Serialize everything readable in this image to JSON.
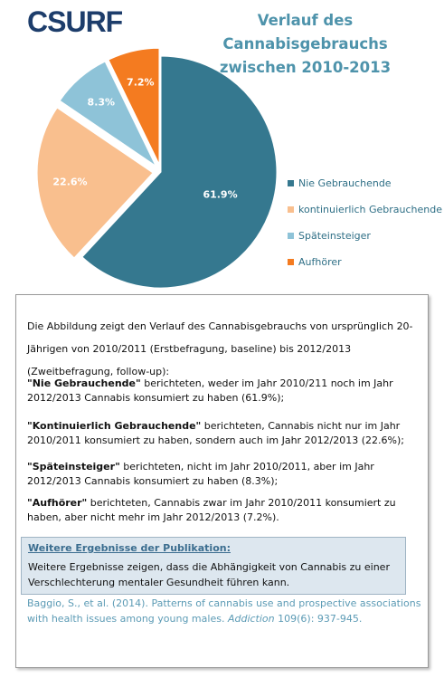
{
  "logo": "CSURF",
  "chart_data": {
    "type": "pie",
    "title": "Verlauf des Cannabisgebrauchs zwischen 2010-2013",
    "categories": [
      "Nie Gebrauchende",
      "kontinuierlich Gebrauchende",
      "Späteinsteiger",
      "Aufhörer"
    ],
    "values": [
      61.9,
      22.6,
      8.3,
      7.2
    ],
    "value_labels": [
      "61.9%",
      "22.6%",
      "8.3%",
      "7.2%"
    ],
    "colors": [
      "#35788f",
      "#f9bf8e",
      "#8ec3d8",
      "#f47b20"
    ],
    "legend": "right"
  },
  "description": {
    "intro": "Die Abbildung zeigt den Verlauf des Cannabisgebrauchs von ursprünglich 20-Jährigen von 2010/2011 (Erstbefragung, baseline) bis 2012/2013 (Zweitbefragung, follow-up):",
    "items": [
      {
        "term": "\"Nie Gebrauchende\"",
        "text": " berichteten, weder im Jahr 2010/211 noch im Jahr 2012/2013 Cannabis konsumiert zu haben (61.9%);"
      },
      {
        "term": "\"Kontinuierlich Gebrauchende\"",
        "text": " berichteten, Cannabis nicht nur im Jahr 2010/2011 konsumiert zu haben, sondern auch im Jahr 2012/2013 (22.6%);"
      },
      {
        "term": "\"Späteinsteiger\"",
        "text": " berichteten, nicht im Jahr 2010/2011, aber im Jahr 2012/2013 Cannabis konsumiert zu haben (8.3%);"
      },
      {
        "term": "\"Aufhörer\"",
        "text": " berichteten, Cannabis zwar im Jahr 2010/2011 konsumiert zu haben, aber nicht mehr im Jahr 2012/2013 (7.2%)."
      }
    ],
    "more_title": "Weitere Ergebnisse der Publikation:",
    "more_text": "Weitere Ergebnisse zeigen, dass die Abhängigkeit von Cannabis zu einer Verschlechterung mentaler Gesundheit führen kann.",
    "citation": {
      "before": "Baggio, S., et al. (2014). Patterns of cannabis use and prospective associations with health issues among young males. ",
      "journal": "Addiction",
      "after": " 109(6): 937-945."
    }
  }
}
